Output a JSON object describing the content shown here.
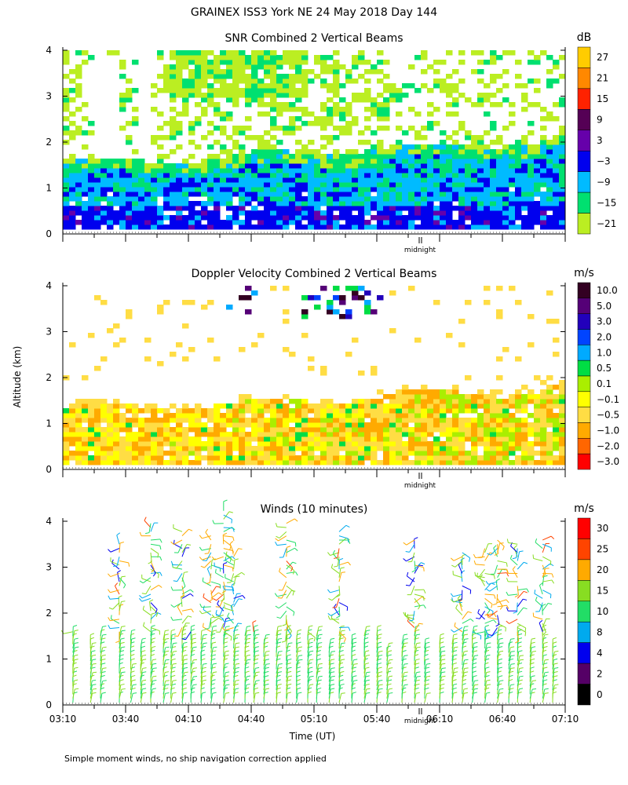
{
  "figure": {
    "title": "GRAINEX ISS3 York NE  24 May 2018 Day 144",
    "ylabel": "Altitude (km)",
    "xlabel": "Time (UT)",
    "footnote": "Simple moment winds, no ship navigation correction applied",
    "midnight_label": "midnight"
  },
  "chart_data": [
    {
      "type": "heatmap",
      "title": "SNR Combined 2 Vertical Beams",
      "unit": "dB",
      "ylim": [
        0,
        4
      ],
      "yticks": [
        "0",
        "1",
        "2",
        "3",
        "4"
      ],
      "x_range": [
        "03:10",
        "07:10"
      ],
      "colorbar_labels": [
        "27",
        "21",
        "15",
        "9",
        "3",
        "−3",
        "−9",
        "−15",
        "−21"
      ],
      "colors": [
        "#ffcc00",
        "#ff8800",
        "#ff2200",
        "#550055",
        "#6600aa",
        "#0000ee",
        "#00bbff",
        "#00e070",
        "#bbee22"
      ]
    },
    {
      "type": "heatmap",
      "title": "Doppler Velocity Combined 2 Vertical Beams",
      "unit": "m/s",
      "ylim": [
        0,
        4
      ],
      "yticks": [
        "0",
        "1",
        "2",
        "3",
        "4"
      ],
      "x_range": [
        "03:10",
        "07:10"
      ],
      "colorbar_labels": [
        "10.0",
        "5.0",
        "3.0",
        "2.0",
        "1.0",
        "0.5",
        "0.1",
        "−0.1",
        "−0.5",
        "−1.0",
        "−2.0",
        "−3.0"
      ],
      "colors": [
        "#330022",
        "#550077",
        "#2200bb",
        "#0044ff",
        "#00aaff",
        "#00dd44",
        "#aaee00",
        "#ffff00",
        "#ffdd44",
        "#ffaa00",
        "#ff6600",
        "#ff0000"
      ]
    },
    {
      "type": "wind_barbs",
      "title": "Winds (10 minutes)",
      "unit": "m/s",
      "ylim": [
        0,
        4
      ],
      "yticks": [
        "0",
        "1",
        "2",
        "3",
        "4"
      ],
      "xticks": [
        "03:10",
        "03:40",
        "04:10",
        "04:40",
        "05:10",
        "05:40",
        "06:10",
        "06:40",
        "07:10"
      ],
      "colorbar_labels": [
        "30",
        "25",
        "20",
        "15",
        "10",
        "8",
        "4",
        "2",
        "0"
      ],
      "colors": [
        "#ff0000",
        "#ff4400",
        "#ffaa00",
        "#88dd22",
        "#22dd66",
        "#00aaee",
        "#0000ee",
        "#550066",
        "#000000"
      ],
      "profile_times": [
        0.08,
        0.22,
        0.3,
        0.45,
        0.54,
        0.62,
        0.7,
        0.8,
        0.86,
        0.95,
        1.02,
        1.1,
        1.18,
        1.28,
        1.36,
        1.45,
        1.52,
        1.6,
        1.7,
        1.78,
        1.86,
        1.95,
        2.02,
        2.12,
        2.2,
        2.3,
        2.4,
        2.5,
        2.58,
        2.7,
        2.8,
        2.88,
        3.0,
        3.1,
        3.18,
        3.26,
        3.36,
        3.46,
        3.55,
        3.62,
        3.72,
        3.82,
        3.9
      ]
    }
  ]
}
